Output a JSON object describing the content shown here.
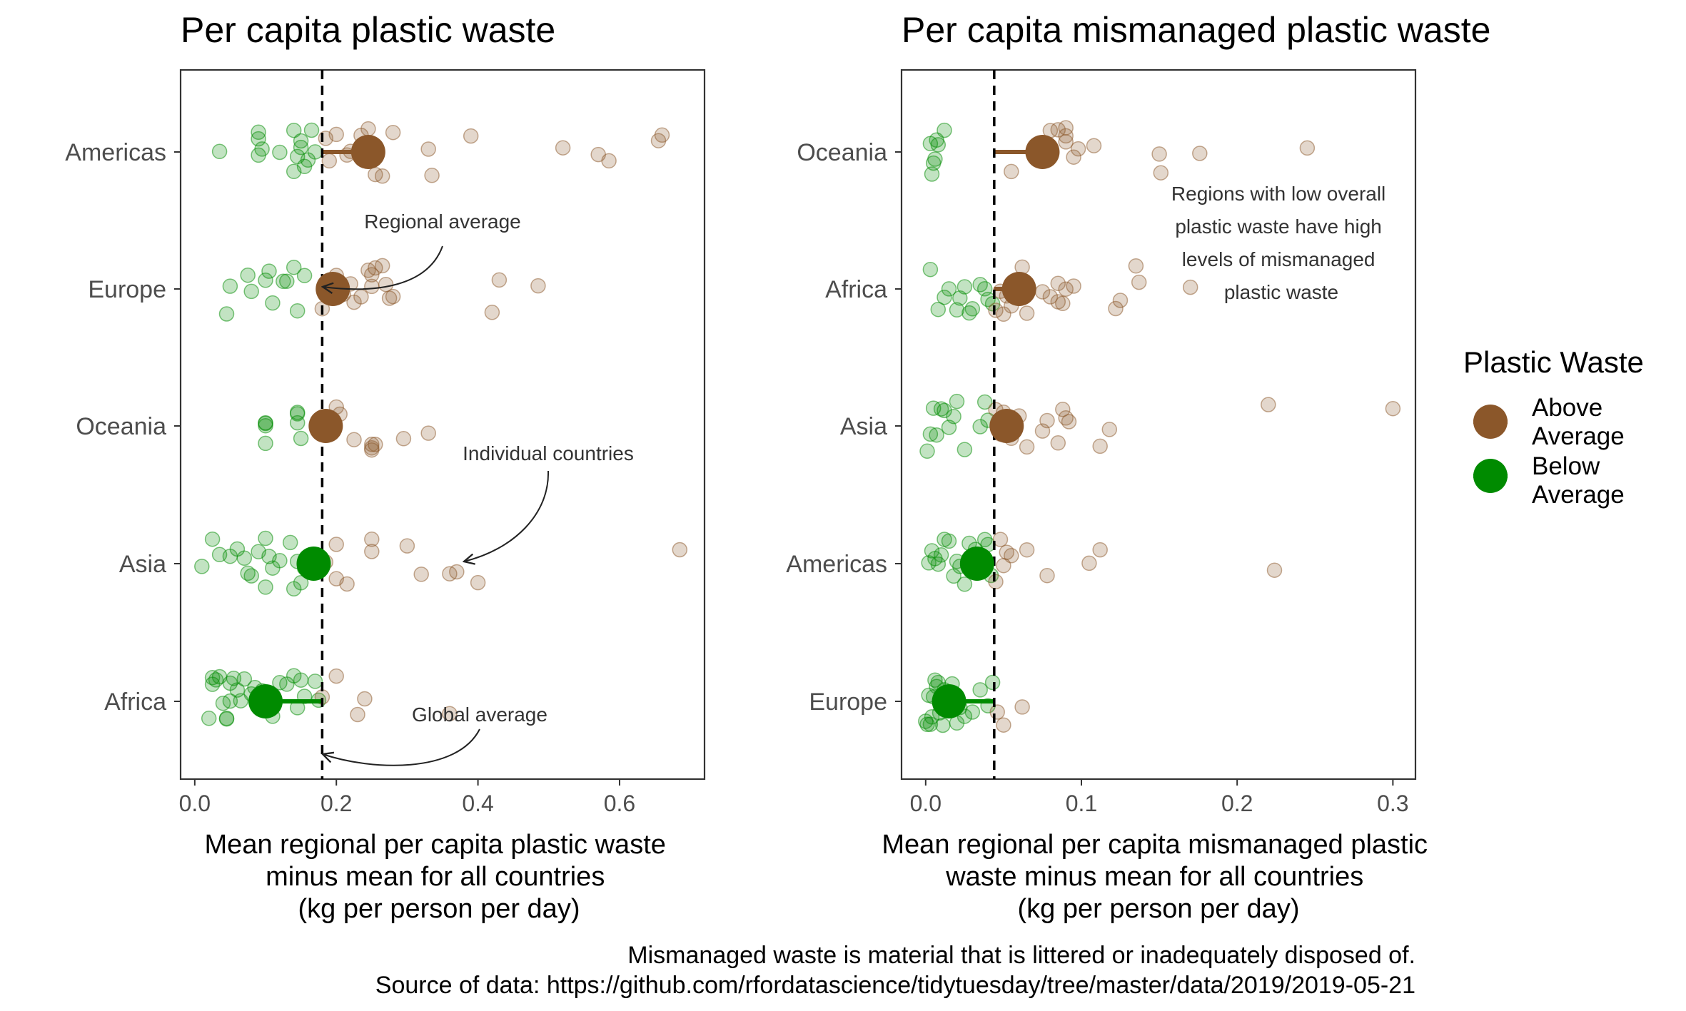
{
  "caption": {
    "line1": "Mismanaged waste is material that is littered or inadequately disposed of.",
    "line2": "Source of data: https://github.com/rfordatascience/tidytuesday/tree/master/data/2019/2019-05-21"
  },
  "legend": {
    "title": "Plastic Waste",
    "placement": "right",
    "items": [
      {
        "label_line1": "Above",
        "label_line2": "Average",
        "color": "#8B572A"
      },
      {
        "label_line1": "Below",
        "label_line2": "Average",
        "color": "#008B00"
      }
    ]
  },
  "colors": {
    "above": "#8B572A",
    "below": "#008B00",
    "reference_line": "#000000"
  },
  "chart_data": [
    {
      "type": "scatter",
      "title": "Per capita plastic waste",
      "xlabel_lines": [
        "Mean regional per capita plastic waste",
        "minus mean for all countries",
        "(kg per person per day)"
      ],
      "ylabel": "",
      "xlim": [
        -0.02,
        0.72
      ],
      "xticks": [
        0.0,
        0.2,
        0.4,
        0.6
      ],
      "xtick_labels": [
        "0.0",
        "0.2",
        "0.4",
        "0.6"
      ],
      "grid": false,
      "global_average": 0.18,
      "categories": [
        "Americas",
        "Europe",
        "Oceania",
        "Asia",
        "Africa"
      ],
      "regions": [
        {
          "name": "Americas",
          "mean": 0.245,
          "group": "above",
          "countries": [
            0.035,
            0.09,
            0.09,
            0.09,
            0.095,
            0.12,
            0.14,
            0.14,
            0.145,
            0.15,
            0.15,
            0.155,
            0.16,
            0.165,
            0.17,
            0.185,
            0.19,
            0.2,
            0.215,
            0.22,
            0.235,
            0.245,
            0.255,
            0.265,
            0.28,
            0.33,
            0.335,
            0.39,
            0.52,
            0.57,
            0.585,
            0.655,
            0.66
          ]
        },
        {
          "name": "Europe",
          "mean": 0.195,
          "group": "above",
          "countries": [
            0.045,
            0.05,
            0.075,
            0.08,
            0.1,
            0.105,
            0.11,
            0.125,
            0.13,
            0.14,
            0.145,
            0.155,
            0.18,
            0.185,
            0.2,
            0.21,
            0.22,
            0.225,
            0.235,
            0.245,
            0.25,
            0.25,
            0.255,
            0.265,
            0.27,
            0.275,
            0.28,
            0.42,
            0.43,
            0.485
          ]
        },
        {
          "name": "Oceania",
          "mean": 0.185,
          "group": "above",
          "countries": [
            0.1,
            0.1,
            0.1,
            0.1,
            0.145,
            0.145,
            0.145,
            0.15,
            0.2,
            0.205,
            0.225,
            0.25,
            0.25,
            0.25,
            0.255,
            0.295,
            0.33
          ]
        },
        {
          "name": "Asia",
          "mean": 0.168,
          "group": "below",
          "countries": [
            0.01,
            0.025,
            0.035,
            0.05,
            0.06,
            0.07,
            0.075,
            0.08,
            0.09,
            0.1,
            0.1,
            0.105,
            0.11,
            0.12,
            0.135,
            0.14,
            0.145,
            0.15,
            0.155,
            0.185,
            0.2,
            0.2,
            0.215,
            0.25,
            0.25,
            0.3,
            0.32,
            0.36,
            0.37,
            0.4,
            0.685
          ]
        },
        {
          "name": "Africa",
          "mean": 0.1,
          "group": "below",
          "countries": [
            0.02,
            0.025,
            0.025,
            0.03,
            0.035,
            0.04,
            0.045,
            0.045,
            0.05,
            0.05,
            0.055,
            0.06,
            0.065,
            0.07,
            0.08,
            0.085,
            0.095,
            0.11,
            0.12,
            0.13,
            0.14,
            0.145,
            0.15,
            0.155,
            0.17,
            0.175,
            0.18,
            0.2,
            0.23,
            0.24,
            0.36
          ]
        }
      ],
      "annotations": [
        {
          "text": "Regional average",
          "target": "Europe mean"
        },
        {
          "text": "Individual countries",
          "target": "Asia points"
        },
        {
          "text": "Global average",
          "target": "global average line"
        }
      ]
    },
    {
      "type": "scatter",
      "title": "Per capita mismanaged plastic waste",
      "xlabel_lines": [
        "Mean regional per capita mismanaged plastic",
        "waste minus mean for all countries",
        "(kg per person per day)"
      ],
      "ylabel": "",
      "xlim": [
        -0.0155,
        0.3145
      ],
      "xticks": [
        0.0,
        0.1,
        0.2,
        0.3
      ],
      "xtick_labels": [
        "0.0",
        "0.1",
        "0.2",
        "0.3"
      ],
      "grid": false,
      "global_average": 0.044,
      "categories": [
        "Oceania",
        "Africa",
        "Asia",
        "Americas",
        "Europe"
      ],
      "regions": [
        {
          "name": "Oceania",
          "mean": 0.075,
          "group": "above",
          "countries": [
            0.003,
            0.004,
            0.005,
            0.006,
            0.007,
            0.008,
            0.012,
            0.055,
            0.08,
            0.085,
            0.09,
            0.09,
            0.09,
            0.095,
            0.098,
            0.108,
            0.15,
            0.151,
            0.176,
            0.245
          ]
        },
        {
          "name": "Africa",
          "mean": 0.06,
          "group": "above",
          "countries": [
            0.003,
            0.008,
            0.012,
            0.015,
            0.02,
            0.022,
            0.025,
            0.028,
            0.03,
            0.035,
            0.038,
            0.04,
            0.043,
            0.045,
            0.048,
            0.05,
            0.052,
            0.055,
            0.058,
            0.062,
            0.065,
            0.075,
            0.08,
            0.085,
            0.085,
            0.088,
            0.09,
            0.095,
            0.122,
            0.125,
            0.135,
            0.137,
            0.17
          ]
        },
        {
          "name": "Asia",
          "mean": 0.052,
          "group": "above",
          "countries": [
            0.001,
            0.003,
            0.005,
            0.007,
            0.01,
            0.012,
            0.015,
            0.018,
            0.02,
            0.025,
            0.035,
            0.038,
            0.04,
            0.045,
            0.048,
            0.05,
            0.055,
            0.06,
            0.065,
            0.075,
            0.078,
            0.085,
            0.088,
            0.09,
            0.092,
            0.112,
            0.118,
            0.22,
            0.3
          ]
        },
        {
          "name": "Americas",
          "mean": 0.033,
          "group": "below",
          "countries": [
            0.002,
            0.004,
            0.006,
            0.008,
            0.01,
            0.012,
            0.015,
            0.018,
            0.02,
            0.022,
            0.025,
            0.028,
            0.03,
            0.032,
            0.035,
            0.038,
            0.04,
            0.042,
            0.045,
            0.048,
            0.05,
            0.052,
            0.055,
            0.065,
            0.078,
            0.105,
            0.112,
            0.224
          ]
        },
        {
          "name": "Europe",
          "mean": 0.015,
          "group": "below",
          "countries": [
            0.0,
            0.001,
            0.002,
            0.003,
            0.004,
            0.005,
            0.006,
            0.007,
            0.008,
            0.009,
            0.01,
            0.011,
            0.012,
            0.013,
            0.015,
            0.017,
            0.02,
            0.022,
            0.025,
            0.03,
            0.035,
            0.04,
            0.043,
            0.046,
            0.05,
            0.062
          ]
        }
      ],
      "annotations": [
        {
          "text_lines": [
            "Regions with low overall",
            "plastic waste have high",
            "levels of mismanaged",
            "plastic waste"
          ]
        }
      ]
    }
  ]
}
